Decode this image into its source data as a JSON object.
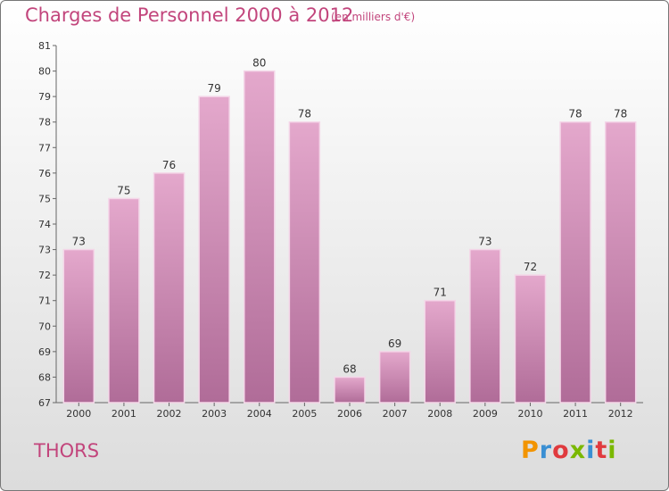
{
  "header": {
    "title": "Charges de Personnel 2000 à 2012",
    "unit": "(en milliers d'€)"
  },
  "footer": {
    "place": "THORS",
    "logo_text": "Proxiti"
  },
  "colors": {
    "title": "#c2457c",
    "bar_top": "#e4a8cc",
    "bar_bottom": "#b06c98",
    "bar_edge": "#f4d6e8",
    "logo_letters": [
      "#f29400",
      "#3a8fd3",
      "#e03a3e",
      "#7ab800",
      "#3a8fd3",
      "#e03a3e",
      "#7ab800"
    ]
  },
  "chart_data": {
    "type": "bar",
    "categories": [
      "2000",
      "2001",
      "2002",
      "2003",
      "2004",
      "2005",
      "2006",
      "2007",
      "2008",
      "2009",
      "2010",
      "2011",
      "2012"
    ],
    "values": [
      73,
      75,
      76,
      79,
      80,
      78,
      68,
      69,
      71,
      73,
      72,
      78,
      78
    ],
    "title": "Charges de Personnel 2000 à 2012",
    "subtitle": "(en milliers d'€)",
    "ylim": [
      67,
      81
    ],
    "yticks": [
      67,
      68,
      69,
      70,
      71,
      72,
      73,
      74,
      75,
      76,
      77,
      78,
      79,
      80,
      81
    ],
    "grid": false,
    "data_labels": true
  }
}
